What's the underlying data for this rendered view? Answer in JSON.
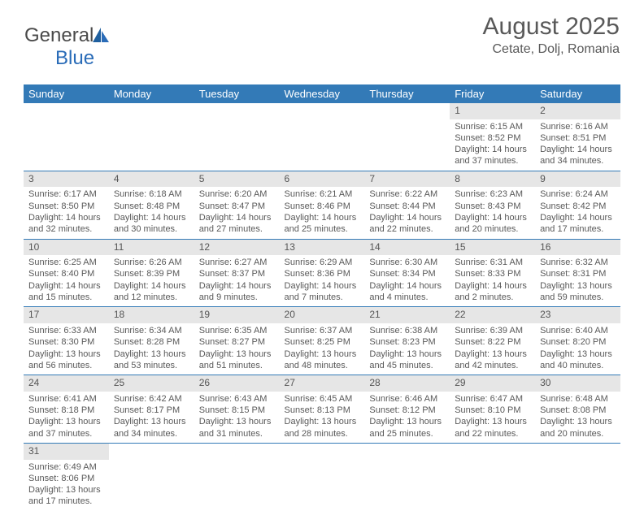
{
  "logo": {
    "part1": "General",
    "part2": "Blue"
  },
  "title": "August 2025",
  "location": "Cetate, Dolj, Romania",
  "colors": {
    "header_bg": "#337ab7",
    "header_text": "#ffffff",
    "daynum_bg": "#e6e6e6",
    "text": "#595959",
    "rule": "#337ab7"
  },
  "dayheaders": [
    "Sunday",
    "Monday",
    "Tuesday",
    "Wednesday",
    "Thursday",
    "Friday",
    "Saturday"
  ],
  "weeks": [
    [
      null,
      null,
      null,
      null,
      null,
      {
        "n": "1",
        "sr": "Sunrise: 6:15 AM",
        "ss": "Sunset: 8:52 PM",
        "dl": "Daylight: 14 hours and 37 minutes."
      },
      {
        "n": "2",
        "sr": "Sunrise: 6:16 AM",
        "ss": "Sunset: 8:51 PM",
        "dl": "Daylight: 14 hours and 34 minutes."
      }
    ],
    [
      {
        "n": "3",
        "sr": "Sunrise: 6:17 AM",
        "ss": "Sunset: 8:50 PM",
        "dl": "Daylight: 14 hours and 32 minutes."
      },
      {
        "n": "4",
        "sr": "Sunrise: 6:18 AM",
        "ss": "Sunset: 8:48 PM",
        "dl": "Daylight: 14 hours and 30 minutes."
      },
      {
        "n": "5",
        "sr": "Sunrise: 6:20 AM",
        "ss": "Sunset: 8:47 PM",
        "dl": "Daylight: 14 hours and 27 minutes."
      },
      {
        "n": "6",
        "sr": "Sunrise: 6:21 AM",
        "ss": "Sunset: 8:46 PM",
        "dl": "Daylight: 14 hours and 25 minutes."
      },
      {
        "n": "7",
        "sr": "Sunrise: 6:22 AM",
        "ss": "Sunset: 8:44 PM",
        "dl": "Daylight: 14 hours and 22 minutes."
      },
      {
        "n": "8",
        "sr": "Sunrise: 6:23 AM",
        "ss": "Sunset: 8:43 PM",
        "dl": "Daylight: 14 hours and 20 minutes."
      },
      {
        "n": "9",
        "sr": "Sunrise: 6:24 AM",
        "ss": "Sunset: 8:42 PM",
        "dl": "Daylight: 14 hours and 17 minutes."
      }
    ],
    [
      {
        "n": "10",
        "sr": "Sunrise: 6:25 AM",
        "ss": "Sunset: 8:40 PM",
        "dl": "Daylight: 14 hours and 15 minutes."
      },
      {
        "n": "11",
        "sr": "Sunrise: 6:26 AM",
        "ss": "Sunset: 8:39 PM",
        "dl": "Daylight: 14 hours and 12 minutes."
      },
      {
        "n": "12",
        "sr": "Sunrise: 6:27 AM",
        "ss": "Sunset: 8:37 PM",
        "dl": "Daylight: 14 hours and 9 minutes."
      },
      {
        "n": "13",
        "sr": "Sunrise: 6:29 AM",
        "ss": "Sunset: 8:36 PM",
        "dl": "Daylight: 14 hours and 7 minutes."
      },
      {
        "n": "14",
        "sr": "Sunrise: 6:30 AM",
        "ss": "Sunset: 8:34 PM",
        "dl": "Daylight: 14 hours and 4 minutes."
      },
      {
        "n": "15",
        "sr": "Sunrise: 6:31 AM",
        "ss": "Sunset: 8:33 PM",
        "dl": "Daylight: 14 hours and 2 minutes."
      },
      {
        "n": "16",
        "sr": "Sunrise: 6:32 AM",
        "ss": "Sunset: 8:31 PM",
        "dl": "Daylight: 13 hours and 59 minutes."
      }
    ],
    [
      {
        "n": "17",
        "sr": "Sunrise: 6:33 AM",
        "ss": "Sunset: 8:30 PM",
        "dl": "Daylight: 13 hours and 56 minutes."
      },
      {
        "n": "18",
        "sr": "Sunrise: 6:34 AM",
        "ss": "Sunset: 8:28 PM",
        "dl": "Daylight: 13 hours and 53 minutes."
      },
      {
        "n": "19",
        "sr": "Sunrise: 6:35 AM",
        "ss": "Sunset: 8:27 PM",
        "dl": "Daylight: 13 hours and 51 minutes."
      },
      {
        "n": "20",
        "sr": "Sunrise: 6:37 AM",
        "ss": "Sunset: 8:25 PM",
        "dl": "Daylight: 13 hours and 48 minutes."
      },
      {
        "n": "21",
        "sr": "Sunrise: 6:38 AM",
        "ss": "Sunset: 8:23 PM",
        "dl": "Daylight: 13 hours and 45 minutes."
      },
      {
        "n": "22",
        "sr": "Sunrise: 6:39 AM",
        "ss": "Sunset: 8:22 PM",
        "dl": "Daylight: 13 hours and 42 minutes."
      },
      {
        "n": "23",
        "sr": "Sunrise: 6:40 AM",
        "ss": "Sunset: 8:20 PM",
        "dl": "Daylight: 13 hours and 40 minutes."
      }
    ],
    [
      {
        "n": "24",
        "sr": "Sunrise: 6:41 AM",
        "ss": "Sunset: 8:18 PM",
        "dl": "Daylight: 13 hours and 37 minutes."
      },
      {
        "n": "25",
        "sr": "Sunrise: 6:42 AM",
        "ss": "Sunset: 8:17 PM",
        "dl": "Daylight: 13 hours and 34 minutes."
      },
      {
        "n": "26",
        "sr": "Sunrise: 6:43 AM",
        "ss": "Sunset: 8:15 PM",
        "dl": "Daylight: 13 hours and 31 minutes."
      },
      {
        "n": "27",
        "sr": "Sunrise: 6:45 AM",
        "ss": "Sunset: 8:13 PM",
        "dl": "Daylight: 13 hours and 28 minutes."
      },
      {
        "n": "28",
        "sr": "Sunrise: 6:46 AM",
        "ss": "Sunset: 8:12 PM",
        "dl": "Daylight: 13 hours and 25 minutes."
      },
      {
        "n": "29",
        "sr": "Sunrise: 6:47 AM",
        "ss": "Sunset: 8:10 PM",
        "dl": "Daylight: 13 hours and 22 minutes."
      },
      {
        "n": "30",
        "sr": "Sunrise: 6:48 AM",
        "ss": "Sunset: 8:08 PM",
        "dl": "Daylight: 13 hours and 20 minutes."
      }
    ],
    [
      {
        "n": "31",
        "sr": "Sunrise: 6:49 AM",
        "ss": "Sunset: 8:06 PM",
        "dl": "Daylight: 13 hours and 17 minutes."
      },
      null,
      null,
      null,
      null,
      null,
      null
    ]
  ]
}
